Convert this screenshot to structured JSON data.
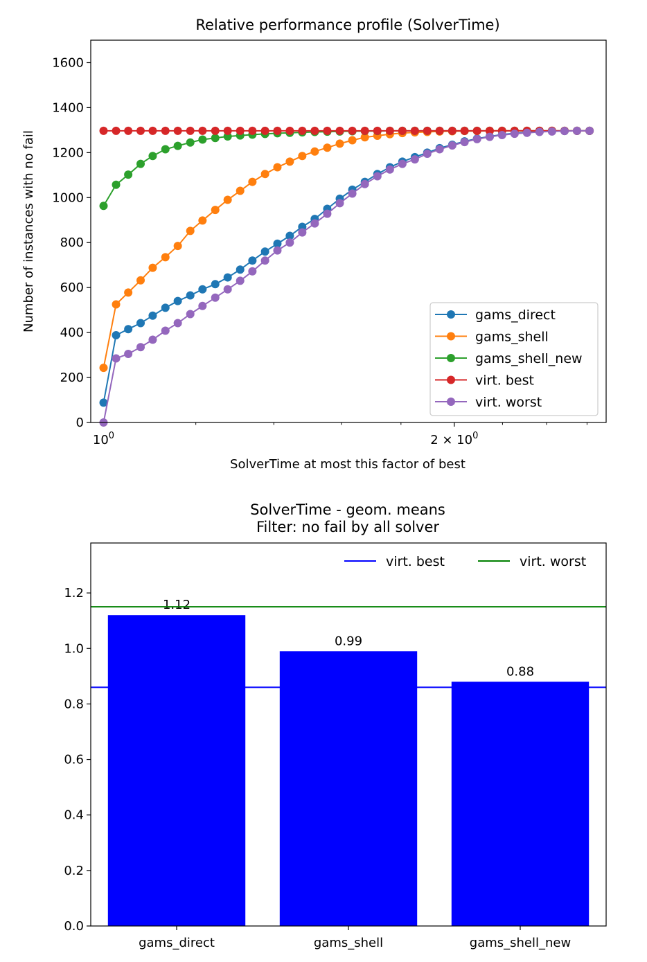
{
  "colors": {
    "gams_direct": "#1f77b4",
    "gams_shell": "#ff7f0e",
    "gams_shell_new": "#2ca02c",
    "virt_best": "#d62728",
    "virt_worst": "#9467bd",
    "bar_fill": "#0000ff",
    "ref_best": "#0000ff",
    "ref_worst": "#008000",
    "axis": "#000000",
    "legend_border": "#cccccc"
  },
  "chart_data": [
    {
      "type": "line",
      "title": "Relative performance profile (SolverTime)",
      "xlabel": "SolverTime at most this factor of best",
      "ylabel": "Number of instances with no fail",
      "xscale": "log",
      "xlim": [
        0.975,
        2.7
      ],
      "ylim": [
        0,
        1700
      ],
      "xticks": [
        {
          "value": 1,
          "base": "10",
          "exp": "0"
        },
        {
          "value": 2,
          "mult": "2 × 10",
          "exp": "0"
        }
      ],
      "yticks": [
        {
          "value": 0,
          "label": "0"
        },
        {
          "value": 200,
          "label": "200"
        },
        {
          "value": 400,
          "label": "400"
        },
        {
          "value": 600,
          "label": "600"
        },
        {
          "value": 800,
          "label": "800"
        },
        {
          "value": 1000,
          "label": "1000"
        },
        {
          "value": 1200,
          "label": "1200"
        },
        {
          "value": 1400,
          "label": "1400"
        },
        {
          "value": 1600,
          "label": "1600"
        }
      ],
      "x": [
        1.0,
        1.025,
        1.05,
        1.076,
        1.102,
        1.13,
        1.158,
        1.187,
        1.216,
        1.247,
        1.278,
        1.31,
        1.342,
        1.376,
        1.41,
        1.445,
        1.481,
        1.518,
        1.556,
        1.595,
        1.635,
        1.676,
        1.718,
        1.761,
        1.805,
        1.85,
        1.896,
        1.943,
        1.992,
        2.041,
        2.092,
        2.145,
        2.198,
        2.253,
        2.309,
        2.367,
        2.426,
        2.487,
        2.549,
        2.613
      ],
      "series": [
        {
          "name": "gams_direct",
          "color_key": "gams_direct",
          "values": [
            88,
            388,
            415,
            442,
            475,
            510,
            540,
            565,
            592,
            615,
            645,
            680,
            720,
            760,
            795,
            830,
            870,
            905,
            950,
            995,
            1035,
            1070,
            1105,
            1135,
            1160,
            1180,
            1200,
            1220,
            1235,
            1250,
            1262,
            1272,
            1280,
            1286,
            1290,
            1293,
            1295,
            1296,
            1297,
            1297
          ]
        },
        {
          "name": "gams_shell",
          "color_key": "gams_shell",
          "values": [
            243,
            525,
            578,
            632,
            688,
            735,
            785,
            852,
            898,
            945,
            990,
            1030,
            1070,
            1105,
            1135,
            1160,
            1185,
            1205,
            1222,
            1240,
            1255,
            1268,
            1275,
            1282,
            1287,
            1290,
            1292,
            1294,
            1295,
            1296,
            1296,
            1297,
            1297,
            1297,
            1297,
            1297,
            1297,
            1297,
            1297,
            1297
          ]
        },
        {
          "name": "gams_shell_new",
          "color_key": "gams_shell_new",
          "values": [
            963,
            1057,
            1102,
            1150,
            1185,
            1215,
            1230,
            1245,
            1258,
            1265,
            1272,
            1276,
            1280,
            1283,
            1286,
            1288,
            1290,
            1292,
            1293,
            1294,
            1295,
            1296,
            1296,
            1297,
            1297,
            1297,
            1297,
            1297,
            1297,
            1297,
            1297,
            1297,
            1297,
            1297,
            1297,
            1297,
            1297,
            1297,
            1297,
            1297
          ]
        },
        {
          "name": "virt. best",
          "color_key": "virt_best",
          "values": [
            1297,
            1297,
            1297,
            1297,
            1297,
            1297,
            1297,
            1297,
            1297,
            1297,
            1297,
            1297,
            1297,
            1297,
            1297,
            1297,
            1297,
            1297,
            1297,
            1297,
            1297,
            1297,
            1297,
            1297,
            1297,
            1297,
            1297,
            1297,
            1297,
            1297,
            1297,
            1297,
            1297,
            1297,
            1297,
            1297,
            1297,
            1297,
            1297,
            1297
          ]
        },
        {
          "name": "virt. worst",
          "color_key": "virt_worst",
          "values": [
            0,
            285,
            305,
            335,
            368,
            408,
            442,
            482,
            518,
            555,
            592,
            630,
            672,
            720,
            765,
            800,
            845,
            885,
            928,
            975,
            1018,
            1060,
            1095,
            1125,
            1150,
            1170,
            1195,
            1215,
            1232,
            1247,
            1260,
            1270,
            1278,
            1284,
            1288,
            1292,
            1294,
            1296,
            1297,
            1297
          ]
        }
      ],
      "legend_position": "lower-right"
    },
    {
      "type": "bar",
      "title": "SolverTime - geom. means",
      "subtitle": "Filter: no fail by all solver",
      "categories": [
        "gams_direct",
        "gams_shell",
        "gams_shell_new"
      ],
      "values": [
        1.12,
        0.99,
        0.88
      ],
      "value_labels": [
        "1.12",
        "0.99",
        "0.88"
      ],
      "ylim": [
        0,
        1.38
      ],
      "yticks": [
        {
          "value": 0.0,
          "label": "0.0"
        },
        {
          "value": 0.2,
          "label": "0.2"
        },
        {
          "value": 0.4,
          "label": "0.4"
        },
        {
          "value": 0.6,
          "label": "0.6"
        },
        {
          "value": 0.8,
          "label": "0.8"
        },
        {
          "value": 1.0,
          "label": "1.0"
        },
        {
          "value": 1.2,
          "label": "1.2"
        }
      ],
      "reference_lines": [
        {
          "name": "virt. best",
          "value": 0.86,
          "color_key": "ref_best"
        },
        {
          "name": "virt. worst",
          "value": 1.15,
          "color_key": "ref_worst"
        }
      ],
      "legend_position": "top-right"
    }
  ]
}
